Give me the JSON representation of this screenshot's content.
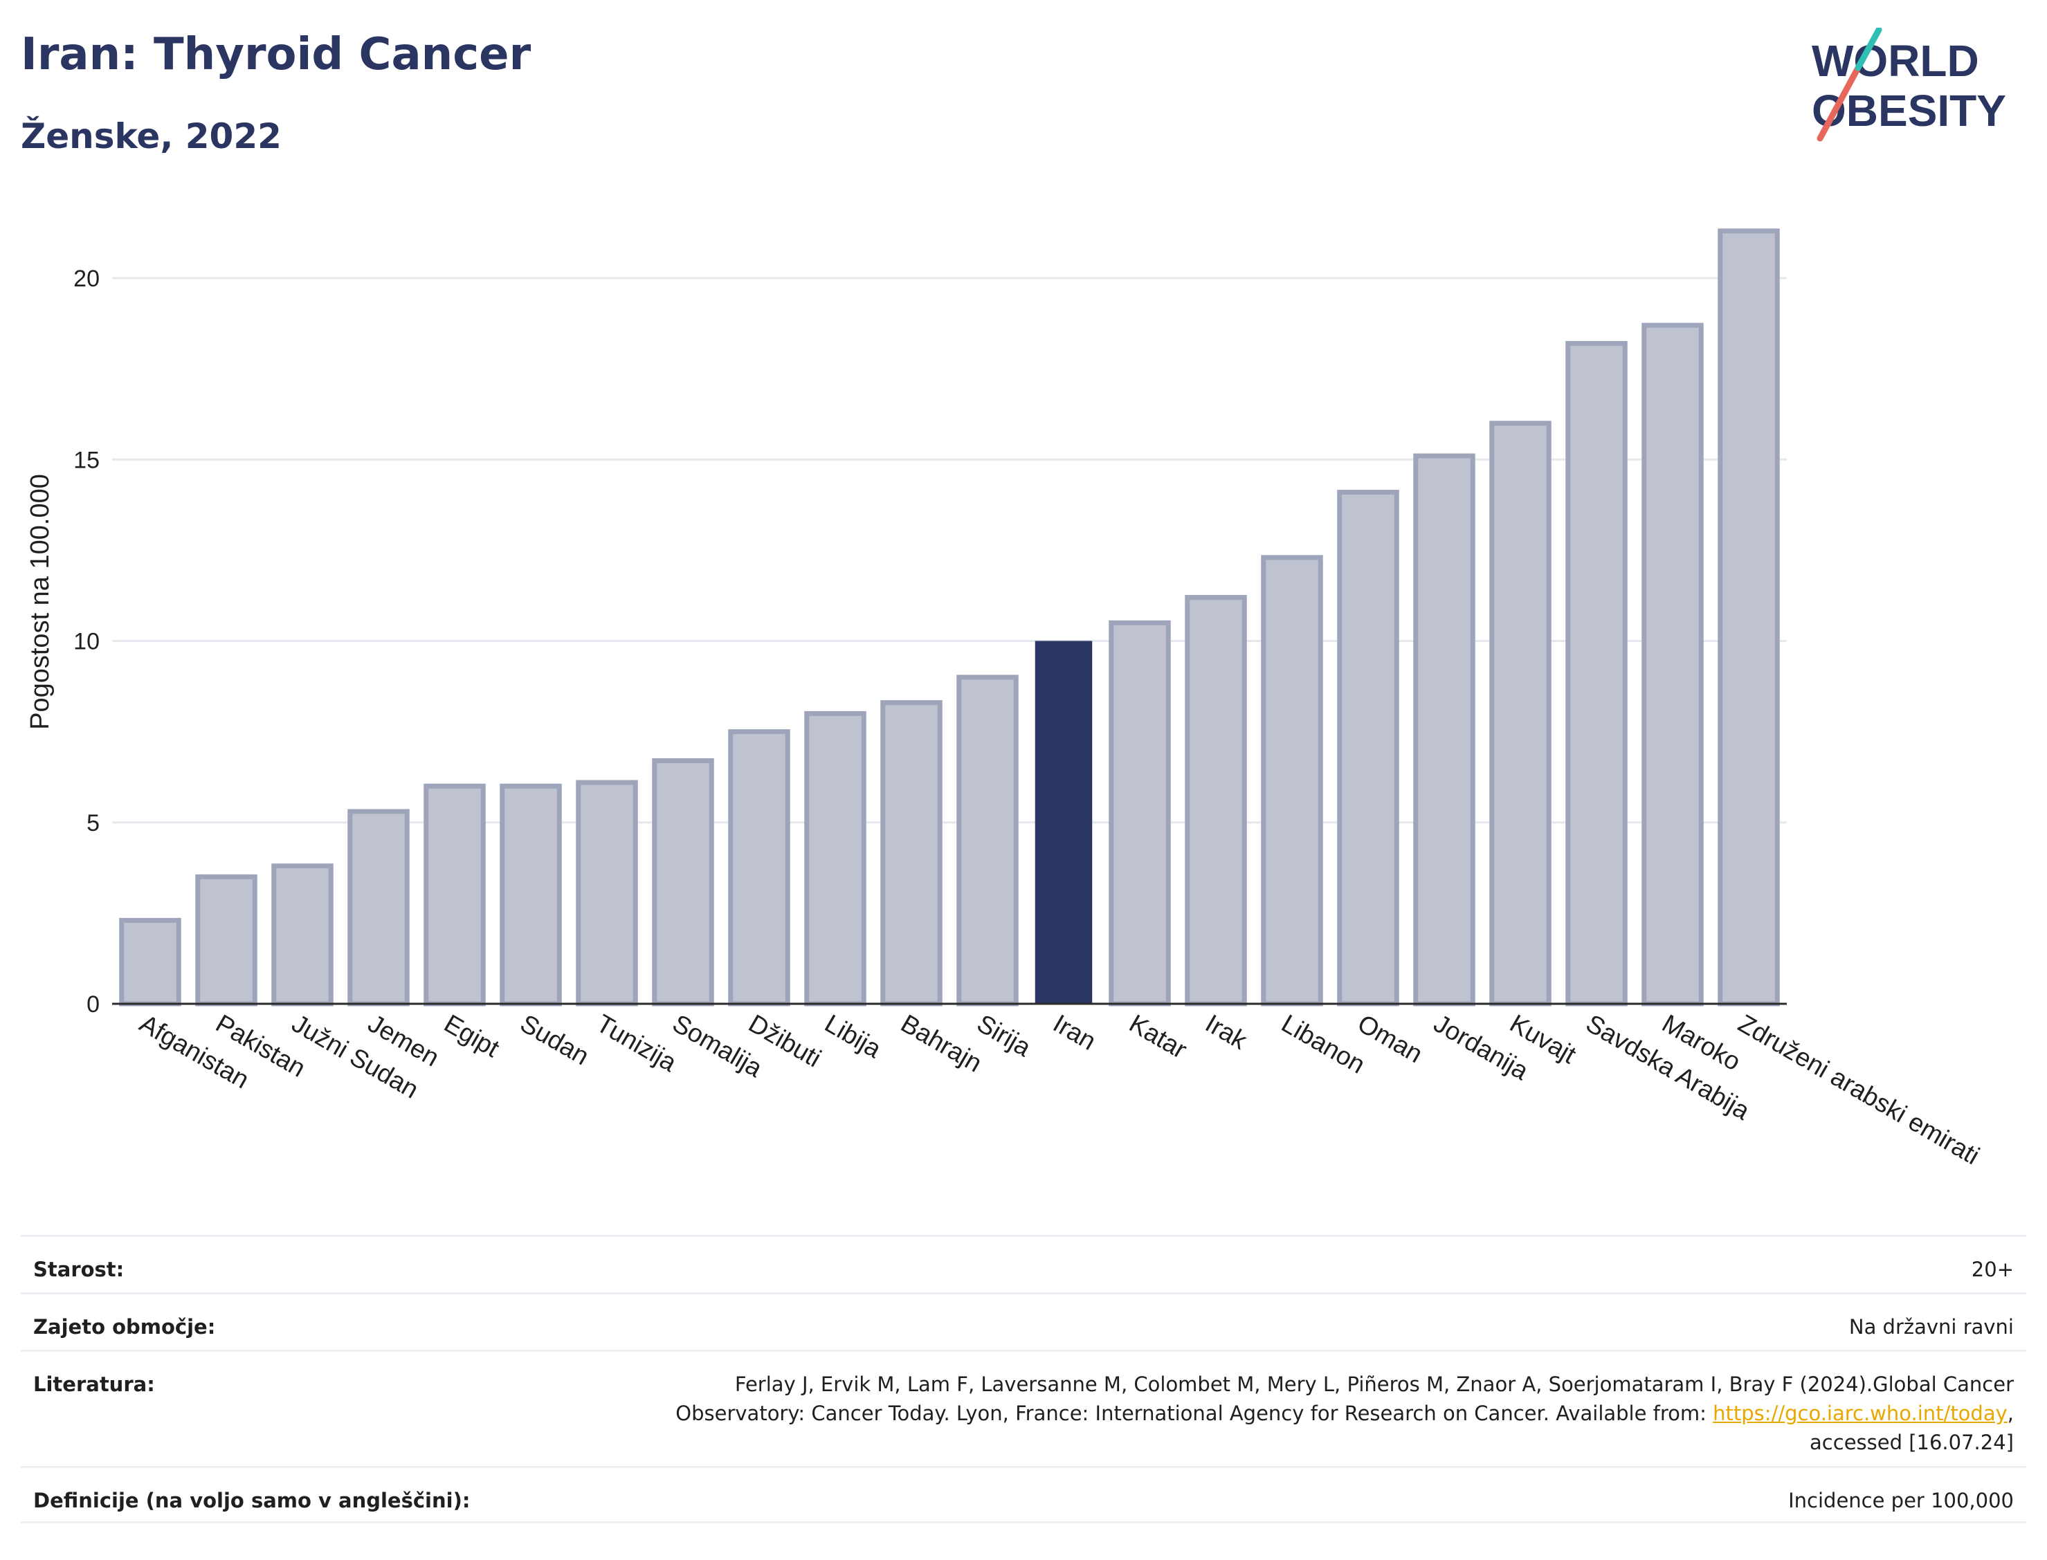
{
  "header": {
    "title": "Iran: Thyroid Cancer",
    "subtitle": "Ženske, 2022"
  },
  "logo": {
    "line1": "WORLD",
    "line2": "OBESITY"
  },
  "colors": {
    "highlight": "#2a3561",
    "bar_fill": "#bfc3d0",
    "bar_stroke": "#9ea4ba",
    "text_dark": "#2a3561",
    "link": "#e9a800"
  },
  "chart_data": {
    "type": "bar",
    "ylabel": "Pogostost na 100.000",
    "ylim": [
      0,
      22
    ],
    "yticks": [
      0,
      5,
      10,
      15,
      20
    ],
    "grid": true,
    "highlight": "Iran",
    "categories": [
      "Afganistan",
      "Pakistan",
      "Južni Sudan",
      "Jemen",
      "Egipt",
      "Sudan",
      "Tunizija",
      "Somalija",
      "Džibuti",
      "Libija",
      "Bahrajn",
      "Sirija",
      "Iran",
      "Katar",
      "Irak",
      "Libanon",
      "Oman",
      "Jordanija",
      "Kuvajt",
      "Savdska Arabija",
      "Maroko",
      "Združeni arabski emirati"
    ],
    "values": [
      2.3,
      3.5,
      3.8,
      5.3,
      6.0,
      6.0,
      6.1,
      6.7,
      7.5,
      8.0,
      8.3,
      9.0,
      10.0,
      10.5,
      11.2,
      12.3,
      14.1,
      15.1,
      16.0,
      18.2,
      18.7,
      21.3
    ]
  },
  "footer": {
    "age_label": "Starost:",
    "age_value": "20+",
    "coverage_label": "Zajeto območje:",
    "coverage_value": "Na državni ravni",
    "lit_label": "Literatura:",
    "lit_text1": "Ferlay J, Ervik M, Lam F, Laversanne M, Colombet M, Mery L, Piñeros M, Znaor A, Soerjomataram I, Bray F (2024).Global Cancer",
    "lit_text2": "Observatory: Cancer Today. Lyon, France: International Agency for Research on Cancer. Available from: ",
    "lit_link": "https://gco.iarc.who.int/today",
    "lit_text3": ",",
    "lit_text4": "accessed [16.07.24]",
    "def_label": "Definicije (na voljo samo v angleščini):",
    "def_value": "Incidence per 100,000"
  }
}
